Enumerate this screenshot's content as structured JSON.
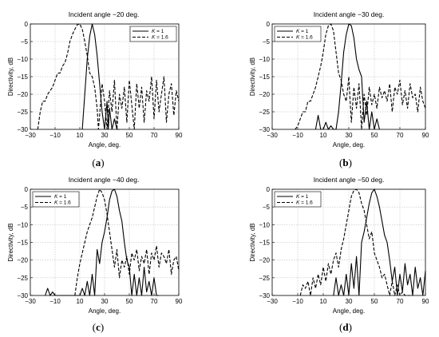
{
  "chart_data": [
    {
      "type": "line",
      "title": "Incident angle −20 deg.",
      "xlabel": "Angle, deg.",
      "ylabel": "Directivity, dB",
      "caption": "a",
      "xlim": [
        -30,
        90
      ],
      "ylim": [
        -30,
        0
      ],
      "xticks": [
        -30,
        -10,
        10,
        30,
        50,
        70,
        90
      ],
      "yticks": [
        0,
        -5,
        -10,
        -15,
        -20,
        -25,
        -30
      ],
      "grid": true,
      "legend_position": "top-right",
      "series": [
        {
          "name": "K = 1",
          "style": "solid",
          "x": [
            12,
            14,
            16,
            18,
            20,
            22,
            24,
            26,
            28,
            30,
            32,
            33,
            34,
            36,
            38,
            40,
            42
          ],
          "y": [
            -30,
            -20,
            -10,
            -3.5,
            0,
            -3,
            -9,
            -17,
            -25,
            -30,
            -22,
            -30,
            -24,
            -30,
            -27,
            -30,
            -30
          ]
        },
        {
          "name": "K = 1.6",
          "style": "dashed",
          "x": [
            -24,
            -22,
            -20,
            -18,
            -16,
            -14,
            -12,
            -10,
            -8,
            -6,
            -4,
            -2,
            0,
            2,
            4,
            6,
            8,
            10,
            12,
            14,
            16,
            18,
            20,
            22,
            24,
            25,
            26,
            28,
            30,
            32,
            34,
            36,
            38,
            40,
            42,
            44,
            46,
            48,
            50,
            52,
            54,
            56,
            58,
            60,
            62,
            64,
            66,
            68,
            70,
            72,
            74,
            76,
            78,
            80,
            82,
            84,
            86,
            88,
            90
          ],
          "y": [
            -30,
            -25,
            -22,
            -22,
            -20,
            -19,
            -18,
            -16,
            -14,
            -14,
            -12,
            -11,
            -8.5,
            -5,
            -3,
            -1.5,
            -0.2,
            0,
            -1.5,
            -5,
            -9,
            -14,
            -15,
            -18,
            -24,
            -30,
            -26,
            -17,
            -22,
            -30,
            -19,
            -25,
            -16,
            -30,
            -20,
            -24,
            -18,
            -28,
            -16,
            -23,
            -30,
            -17,
            -24,
            -18,
            -28,
            -19,
            -22,
            -15,
            -27,
            -16,
            -25,
            -20,
            -15,
            -28,
            -20,
            -17,
            -26,
            -19,
            -22
          ]
        }
      ]
    },
    {
      "type": "line",
      "title": "Incident angle −30 deg.",
      "xlabel": "Angle, deg.",
      "ylabel": "Directivity, dB",
      "caption": "b",
      "xlim": [
        -30,
        90
      ],
      "ylim": [
        -30,
        0
      ],
      "xticks": [
        -30,
        -10,
        10,
        30,
        50,
        70,
        90
      ],
      "yticks": [
        0,
        -5,
        -10,
        -15,
        -20,
        -25,
        -30
      ],
      "grid": true,
      "legend_position": "top-left",
      "series": [
        {
          "name": "K = 1",
          "style": "solid",
          "x": [
            4,
            6,
            8,
            9,
            10,
            12,
            14,
            16,
            18,
            20,
            22,
            24,
            26,
            28,
            30,
            32,
            34,
            36,
            38,
            40,
            42,
            44,
            46,
            48,
            50,
            52,
            54
          ],
          "y": [
            -30,
            -26,
            -30,
            -30,
            -30,
            -28,
            -30,
            -29,
            -30,
            -30,
            -25,
            -17,
            -8,
            -3,
            0,
            -0.5,
            -4,
            -10,
            -13,
            -15,
            -28,
            -22,
            -30,
            -25,
            -30,
            -27,
            -30
          ]
        },
        {
          "name": "K = 1.6",
          "style": "dashed",
          "x": [
            -12,
            -10,
            -8,
            -6,
            -4,
            -2,
            0,
            2,
            4,
            6,
            8,
            10,
            12,
            14,
            16,
            18,
            20,
            22,
            24,
            26,
            28,
            30,
            32,
            34,
            36,
            38,
            40,
            42,
            44,
            46,
            48,
            50,
            52,
            54,
            56,
            58,
            60,
            62,
            64,
            66,
            68,
            70,
            72,
            74,
            76,
            78,
            80,
            82,
            84,
            86,
            88,
            90
          ],
          "y": [
            -30,
            -29,
            -27,
            -25,
            -25,
            -22,
            -22,
            -20,
            -18,
            -15,
            -12,
            -8,
            -3,
            -0.5,
            0,
            -2,
            -8,
            -14,
            -16,
            -20,
            -22,
            -15,
            -28,
            -18,
            -24,
            -17,
            -30,
            -20,
            -26,
            -18,
            -23,
            -20,
            -24,
            -18,
            -21,
            -19,
            -22,
            -17,
            -25,
            -18,
            -20,
            -16,
            -23,
            -19,
            -24,
            -17,
            -21,
            -20,
            -25,
            -18,
            -22,
            -24
          ]
        }
      ]
    },
    {
      "type": "line",
      "title": "Incident angle −40 deg.",
      "xlabel": "Angle, deg.",
      "ylabel": "Directivity, dB",
      "caption": "c",
      "xlim": [
        -30,
        90
      ],
      "ylim": [
        -30,
        0
      ],
      "xticks": [
        -30,
        -10,
        10,
        30,
        50,
        70,
        90
      ],
      "yticks": [
        0,
        -5,
        -10,
        -15,
        -20,
        -25,
        -30
      ],
      "grid": true,
      "legend_position": "top-left",
      "series": [
        {
          "name": "K = 1",
          "style": "solid",
          "x": [
            -18,
            -16,
            -14,
            -12,
            -10,
            -8,
            10,
            12,
            14,
            16,
            18,
            20,
            22,
            24,
            26,
            28,
            30,
            32,
            34,
            36,
            38,
            40,
            42,
            44,
            46,
            48,
            50,
            52,
            54,
            56,
            58,
            60,
            62,
            64,
            66,
            68,
            70,
            72,
            74
          ],
          "y": [
            -30,
            -28,
            -30,
            -29,
            -30,
            -30,
            -30,
            -28,
            -30,
            -26,
            -30,
            -24,
            -30,
            -17,
            -21,
            -15,
            -12,
            -8,
            -3,
            -0.5,
            0,
            -2,
            -6,
            -9,
            -15,
            -20,
            -22,
            -30,
            -24,
            -30,
            -25,
            -30,
            -22,
            -29,
            -26,
            -30,
            -25,
            -30,
            -30
          ]
        },
        {
          "name": "K = 1.6",
          "style": "dashed",
          "x": [
            6,
            8,
            10,
            12,
            14,
            16,
            18,
            20,
            22,
            24,
            26,
            28,
            30,
            32,
            34,
            36,
            38,
            40,
            42,
            44,
            46,
            48,
            50,
            52,
            54,
            56,
            58,
            60,
            62,
            64,
            66,
            68,
            70,
            72,
            74,
            76,
            78,
            80,
            82,
            84,
            86,
            88,
            90
          ],
          "y": [
            -30,
            -25,
            -21,
            -18,
            -15,
            -12,
            -10,
            -8,
            -5,
            -2,
            0,
            -1,
            -3,
            -7,
            -12,
            -17,
            -22,
            -17,
            -25,
            -20,
            -22,
            -19,
            -24,
            -18,
            -20,
            -17,
            -23,
            -19,
            -21,
            -17,
            -24,
            -18,
            -20,
            -16,
            -22,
            -18,
            -19,
            -21,
            -17,
            -24,
            -20,
            -19,
            -23
          ]
        }
      ]
    },
    {
      "type": "line",
      "title": "Incident angle −50 deg.",
      "xlabel": "Angle, deg.",
      "ylabel": "Directivity, dB",
      "caption": "d",
      "xlim": [
        -30,
        90
      ],
      "ylim": [
        -30,
        0
      ],
      "xticks": [
        -30,
        -10,
        10,
        30,
        50,
        70,
        90
      ],
      "yticks": [
        0,
        -5,
        -10,
        -15,
        -20,
        -25,
        -30
      ],
      "grid": true,
      "legend_position": "top-left",
      "series": [
        {
          "name": "K = 1",
          "style": "solid",
          "x": [
            18,
            20,
            22,
            24,
            26,
            28,
            30,
            32,
            34,
            36,
            38,
            40,
            42,
            44,
            46,
            48,
            50,
            52,
            54,
            56,
            58,
            60,
            62,
            64,
            66,
            68,
            70,
            72,
            74,
            76,
            78,
            80,
            82,
            84,
            86,
            88,
            90
          ],
          "y": [
            -30,
            -25,
            -30,
            -27,
            -30,
            -24,
            -30,
            -21,
            -28,
            -19,
            -30,
            -15,
            -12,
            -8,
            -4,
            -1,
            0,
            -2,
            -5,
            -9,
            -13,
            -15,
            -20,
            -26,
            -22,
            -30,
            -24,
            -29,
            -21,
            -27,
            -24,
            -30,
            -22,
            -28,
            -25,
            -30,
            -23
          ]
        },
        {
          "name": "K = 1.6",
          "style": "dashed",
          "x": [
            -8,
            -6,
            -4,
            -2,
            0,
            2,
            4,
            6,
            8,
            10,
            12,
            14,
            16,
            18,
            20,
            22,
            24,
            26,
            28,
            30,
            32,
            34,
            36,
            38,
            40,
            42,
            44,
            46,
            48,
            50,
            52,
            54,
            56,
            58,
            60,
            62,
            64,
            66,
            68,
            70,
            72,
            74,
            76,
            78
          ],
          "y": [
            -30,
            -27,
            -28,
            -26,
            -30,
            -25,
            -28,
            -24,
            -27,
            -22,
            -26,
            -21,
            -24,
            -20,
            -18,
            -22,
            -17,
            -14,
            -10,
            -6,
            -2,
            -0.3,
            0,
            -1,
            -4,
            -6,
            -10,
            -14,
            -12,
            -18,
            -20,
            -22,
            -25,
            -24,
            -27,
            -30,
            -26,
            -30,
            -27,
            -30,
            -29,
            -30,
            -30,
            -30
          ]
        }
      ]
    }
  ]
}
